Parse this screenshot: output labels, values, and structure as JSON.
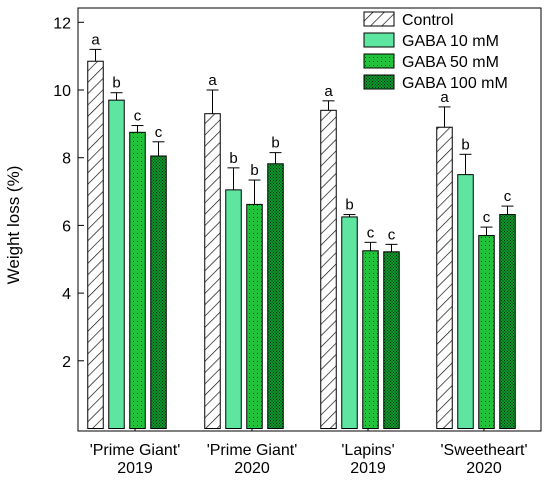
{
  "chart_data": {
    "type": "bar",
    "title": "",
    "xlabel": "",
    "ylabel": "Weight loss (%)",
    "ylim": [
      0,
      12
    ],
    "yticks": [
      2,
      4,
      6,
      8,
      10,
      12
    ],
    "grid": false,
    "legend_position": "top-right",
    "categories": [
      [
        "'Prime Giant'",
        "2019"
      ],
      [
        "'Prime Giant'",
        "2020"
      ],
      [
        "'Lapins'",
        "2019"
      ],
      [
        "'Sweetheart'",
        "2020"
      ]
    ],
    "series": [
      {
        "name": "Control",
        "color": "#ffffff",
        "pattern": "diagonal-hatch",
        "values": [
          10.85,
          9.3,
          9.4,
          8.9
        ],
        "errors": [
          0.35,
          0.7,
          0.28,
          0.6
        ],
        "letters": [
          "a",
          "a",
          "a",
          "a"
        ]
      },
      {
        "name": "GABA 10 mM",
        "color": "#5ee6a0",
        "pattern": "solid",
        "values": [
          9.7,
          7.05,
          6.25,
          7.5
        ],
        "errors": [
          0.22,
          0.65,
          0.07,
          0.6
        ],
        "letters": [
          "b",
          "b",
          "b",
          "b"
        ]
      },
      {
        "name": "GABA 50 mM",
        "color": "#1fc43a",
        "pattern": "sparse-dots",
        "values": [
          8.75,
          6.62,
          5.25,
          5.7
        ],
        "errors": [
          0.2,
          0.72,
          0.25,
          0.25
        ],
        "letters": [
          "c",
          "b",
          "c",
          "c"
        ]
      },
      {
        "name": "GABA 100 mM",
        "color": "#0e9a2a",
        "pattern": "dense-dots",
        "values": [
          8.05,
          7.82,
          5.22,
          6.32
        ],
        "errors": [
          0.42,
          0.33,
          0.22,
          0.25
        ],
        "letters": [
          "c",
          "b",
          "c",
          "c"
        ]
      }
    ]
  }
}
